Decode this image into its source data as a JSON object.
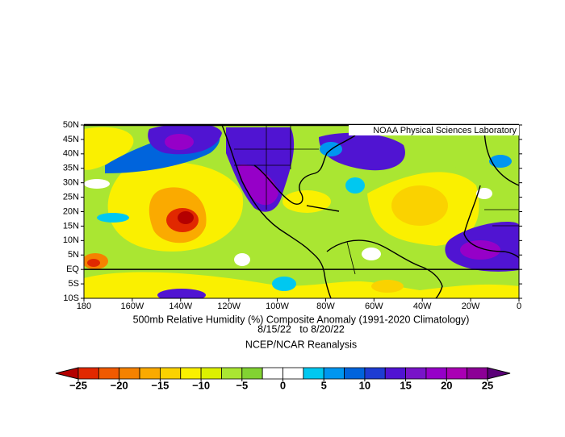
{
  "chart_data": {
    "type": "contour-map",
    "title": "500mb Relative Humidity (%) Composite Anomaly (1991-2020 Climatology)",
    "subtitle": "8/15/22   to 8/20/22",
    "source": "NCEP/NCAR Reanalysis",
    "credit": "NOAA Physical Sciences Laboratory",
    "xlim": [
      180,
      0
    ],
    "xticks": [
      180,
      {
        "value": 160,
        "label": "160W"
      },
      {
        "value": 140,
        "label": "140W"
      },
      {
        "value": 120,
        "label": "120W"
      },
      {
        "value": 100,
        "label": "100W"
      },
      {
        "value": 80,
        "label": "80W"
      },
      {
        "value": 60,
        "label": "60W"
      },
      {
        "value": 40,
        "label": "40W"
      },
      {
        "value": 20,
        "label": "20W"
      },
      0
    ],
    "ylim": [
      -10,
      50
    ],
    "yticks": [
      {
        "value": 50,
        "label": "50N"
      },
      {
        "value": 45,
        "label": "45N"
      },
      {
        "value": 40,
        "label": "40N"
      },
      {
        "value": 35,
        "label": "35N"
      },
      {
        "value": 30,
        "label": "30N"
      },
      {
        "value": 25,
        "label": "25N"
      },
      {
        "value": 20,
        "label": "20N"
      },
      {
        "value": 15,
        "label": "15N"
      },
      {
        "value": 10,
        "label": "10N"
      },
      {
        "value": 5,
        "label": "5N"
      },
      {
        "value": 0,
        "label": "EQ"
      },
      {
        "value": -5,
        "label": "5S"
      },
      {
        "value": -10,
        "label": "10S"
      }
    ],
    "colorbar": {
      "levels": [
        -25,
        -22.5,
        -20,
        -17.5,
        -15,
        -12.5,
        -10,
        -7.5,
        -5,
        -2.5,
        0,
        2.5,
        5,
        7.5,
        10,
        12.5,
        15,
        17.5,
        20,
        22.5,
        25
      ],
      "colors": [
        "#b40000",
        "#e12800",
        "#f05a00",
        "#f58200",
        "#faaa00",
        "#fad200",
        "#faf000",
        "#dcf000",
        "#aae632",
        "#82d232",
        "#ffffff",
        "#ffffff",
        "#00c8f0",
        "#0096f0",
        "#0064dc",
        "#1e3cd2",
        "#5014d2",
        "#7814c8",
        "#9600c8",
        "#aa00b4",
        "#8c0096",
        "#5a0078"
      ],
      "ticks": [
        {
          "value": -25,
          "label": "−25"
        },
        {
          "value": -20,
          "label": "−20"
        },
        {
          "value": -15,
          "label": "−15"
        },
        {
          "value": -10,
          "label": "−10"
        },
        {
          "value": -5,
          "label": "−5"
        },
        0,
        5,
        10,
        15,
        20,
        25
      ]
    }
  }
}
